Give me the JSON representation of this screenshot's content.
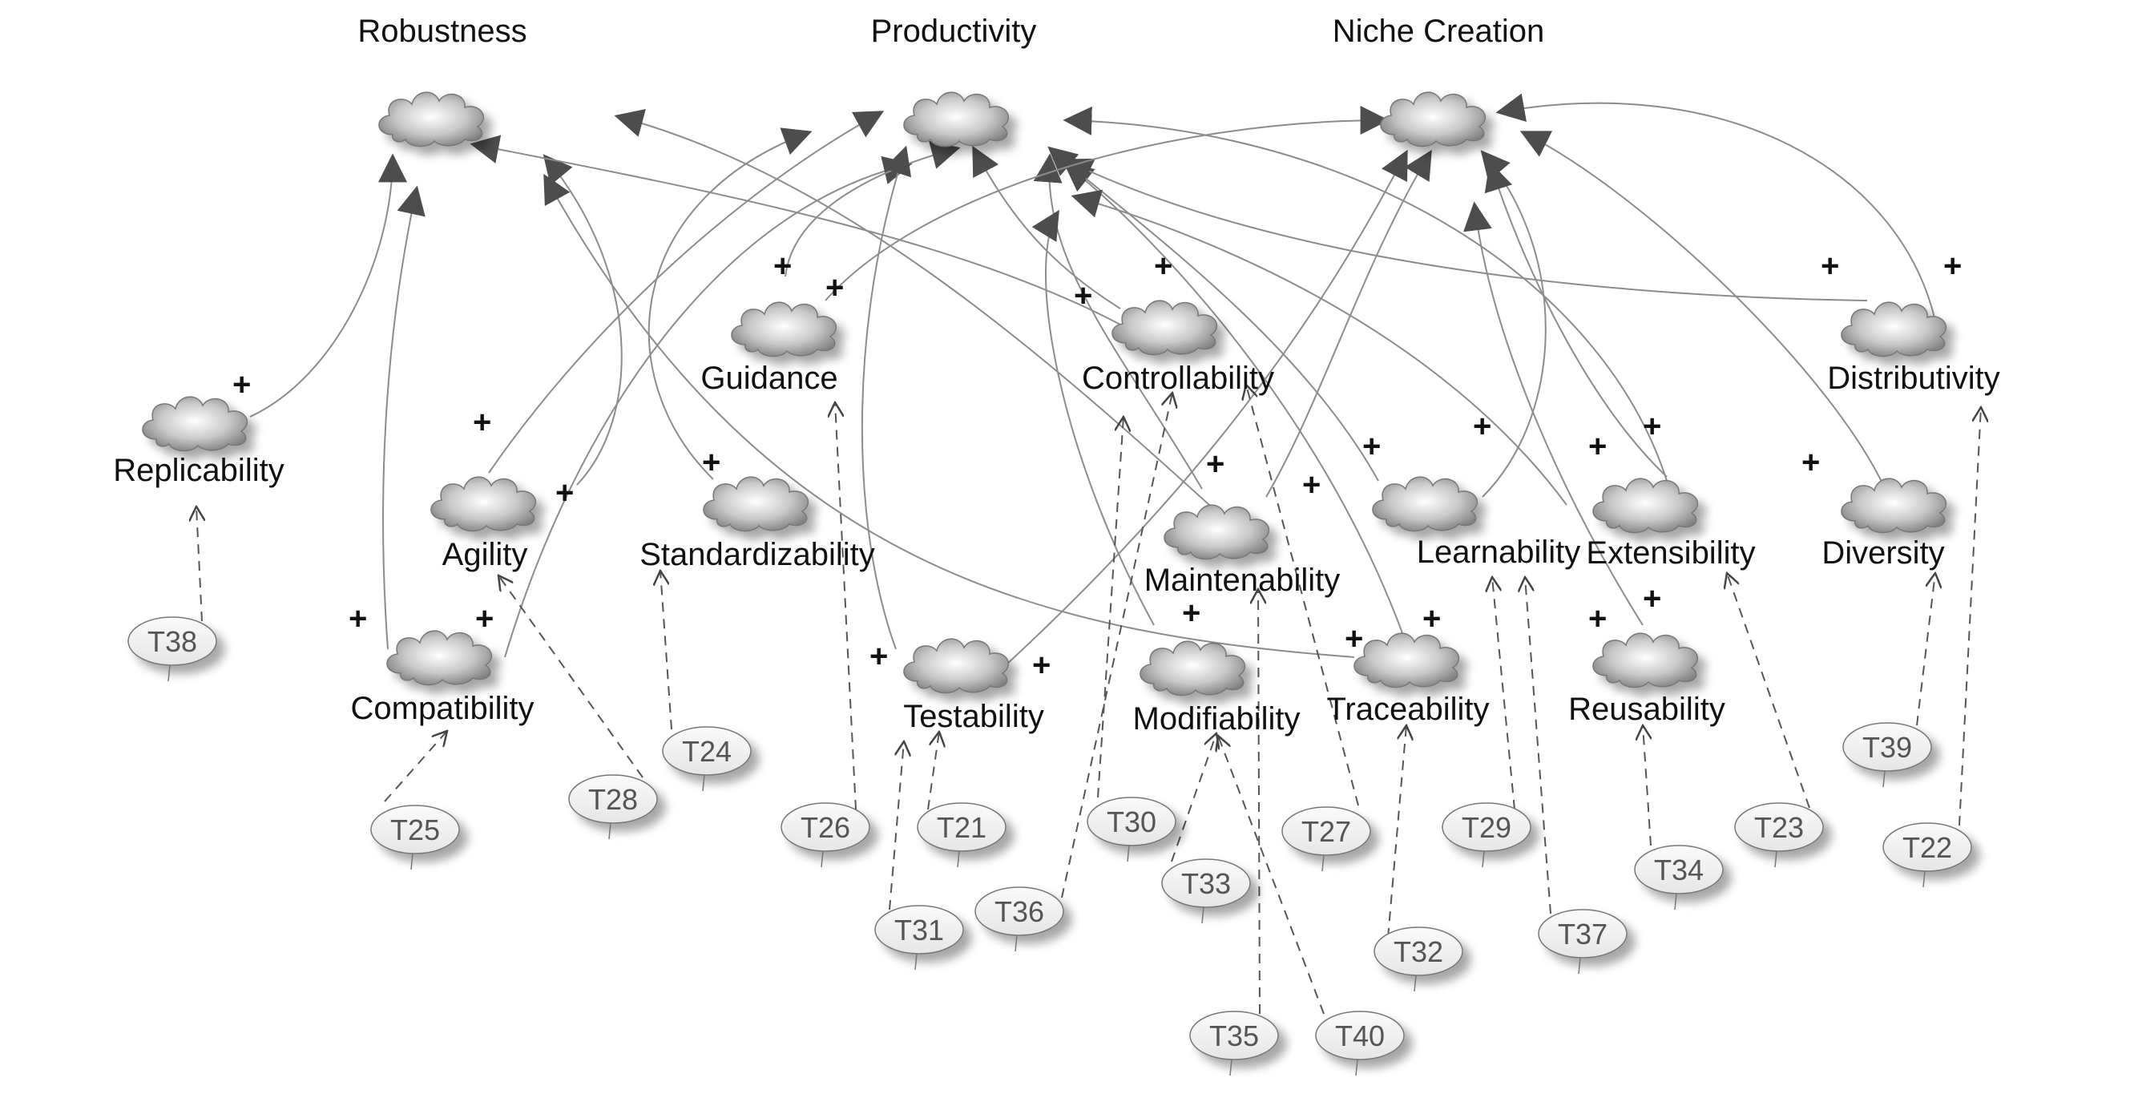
{
  "goals": [
    {
      "id": "robustness",
      "label": "Robustness"
    },
    {
      "id": "productivity",
      "label": "Productivity"
    },
    {
      "id": "niche",
      "label": "Niche Creation"
    }
  ],
  "softgoals": [
    {
      "id": "replicability",
      "label": "Replicability"
    },
    {
      "id": "agility",
      "label": "Agility"
    },
    {
      "id": "compatibility",
      "label": "Compatibility"
    },
    {
      "id": "guidance",
      "label": "Guidance"
    },
    {
      "id": "standardizability",
      "label": "Standardizability"
    },
    {
      "id": "testability",
      "label": "Testability"
    },
    {
      "id": "controllability",
      "label": "Controllability"
    },
    {
      "id": "maintenability",
      "label": "Maintenability"
    },
    {
      "id": "modifiability",
      "label": "Modifiability"
    },
    {
      "id": "learnability",
      "label": "Learnability"
    },
    {
      "id": "traceability",
      "label": "Traceability"
    },
    {
      "id": "extensibility",
      "label": "Extensibility"
    },
    {
      "id": "reusability",
      "label": "Reusability"
    },
    {
      "id": "distributivity",
      "label": "Distributivity"
    },
    {
      "id": "diversity",
      "label": "Diversity"
    }
  ],
  "tasks": [
    {
      "id": "T38",
      "label": "T38"
    },
    {
      "id": "T25",
      "label": "T25"
    },
    {
      "id": "T28",
      "label": "T28"
    },
    {
      "id": "T24",
      "label": "T24"
    },
    {
      "id": "T26",
      "label": "T26"
    },
    {
      "id": "T21",
      "label": "T21"
    },
    {
      "id": "T31",
      "label": "T31"
    },
    {
      "id": "T36",
      "label": "T36"
    },
    {
      "id": "T30",
      "label": "T30"
    },
    {
      "id": "T33",
      "label": "T33"
    },
    {
      "id": "T35",
      "label": "T35"
    },
    {
      "id": "T40",
      "label": "T40"
    },
    {
      "id": "T27",
      "label": "T27"
    },
    {
      "id": "T32",
      "label": "T32"
    },
    {
      "id": "T29",
      "label": "T29"
    },
    {
      "id": "T37",
      "label": "T37"
    },
    {
      "id": "T34",
      "label": "T34"
    },
    {
      "id": "T23",
      "label": "T23"
    },
    {
      "id": "T39",
      "label": "T39"
    },
    {
      "id": "T22",
      "label": "T22"
    }
  ],
  "contribution_symbol": "+",
  "colors": {
    "cloud_dark": "#8a8a8a",
    "cloud_light": "#ffffff",
    "link": "#888888",
    "arrowhead": "#4d4d4d",
    "task_fill": "#f4f4f4"
  }
}
